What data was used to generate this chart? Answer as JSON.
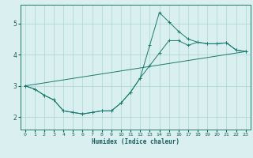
{
  "xlabel": "Humidex (Indice chaleur)",
  "bg_color": "#daf0f0",
  "grid_color": "#aad4d4",
  "line_color": "#1a7a6e",
  "xlim": [
    -0.5,
    23.5
  ],
  "ylim": [
    1.6,
    5.6
  ],
  "xticks": [
    0,
    1,
    2,
    3,
    4,
    5,
    6,
    7,
    8,
    9,
    10,
    11,
    12,
    13,
    14,
    15,
    16,
    17,
    18,
    19,
    20,
    21,
    22,
    23
  ],
  "yticks": [
    2,
    3,
    4,
    5
  ],
  "line1_straight": {
    "x": [
      0,
      23
    ],
    "y": [
      3.0,
      4.1
    ]
  },
  "line2_smooth": {
    "x": [
      0,
      1,
      2,
      3,
      4,
      5,
      6,
      7,
      8,
      9,
      10,
      11,
      12,
      13,
      14,
      15,
      16,
      17,
      18,
      19,
      20,
      21,
      22,
      23
    ],
    "y": [
      3.0,
      2.9,
      2.7,
      2.55,
      2.2,
      2.15,
      2.1,
      2.15,
      2.2,
      2.2,
      2.45,
      2.8,
      3.25,
      3.65,
      4.05,
      4.45,
      4.45,
      4.3,
      4.4,
      4.35,
      4.35,
      4.38,
      4.15,
      4.1
    ]
  },
  "line3_spike": {
    "x": [
      0,
      1,
      2,
      3,
      4,
      5,
      6,
      7,
      8,
      9,
      10,
      11,
      12,
      13,
      14,
      15,
      16,
      17,
      18,
      19,
      20,
      21,
      22,
      23
    ],
    "y": [
      3.0,
      2.9,
      2.7,
      2.55,
      2.2,
      2.15,
      2.1,
      2.15,
      2.2,
      2.2,
      2.45,
      2.8,
      3.25,
      4.3,
      5.35,
      5.05,
      4.75,
      4.5,
      4.4,
      4.35,
      4.35,
      4.38,
      4.15,
      4.1
    ]
  }
}
